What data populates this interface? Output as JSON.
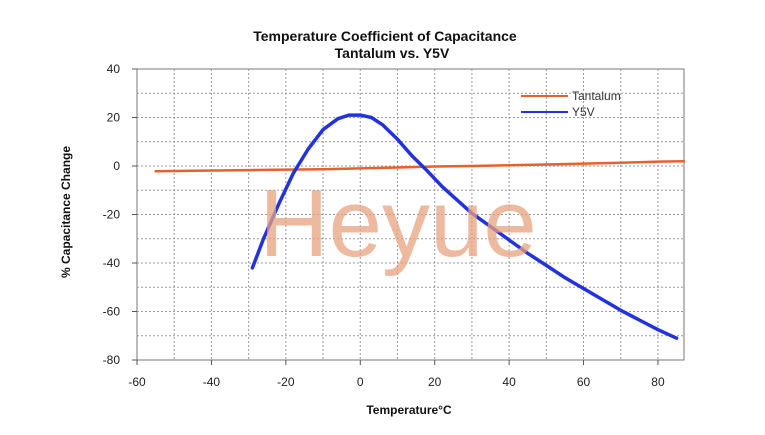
{
  "chart_data": {
    "type": "line",
    "title": "Temperature Coefficient of Capacitance",
    "subtitle": "Tantalum vs. Y5V",
    "xlabel": "Temperature°C",
    "ylabel": "% Capacitance Change",
    "xlim": [
      -60,
      87
    ],
    "ylim": [
      -80,
      40
    ],
    "xticks": [
      -60,
      -40,
      -20,
      0,
      20,
      40,
      60,
      80
    ],
    "yticks": [
      40,
      20,
      0,
      -20,
      -40,
      -60,
      -80
    ],
    "grid": true,
    "legend_position": "top-right",
    "series": [
      {
        "name": "Tantalum",
        "color": "#e8602c",
        "x": [
          -55,
          -45,
          -30,
          -20,
          -10,
          0,
          10,
          20,
          30,
          40,
          50,
          60,
          70,
          80,
          87
        ],
        "y": [
          -2.2,
          -2.0,
          -1.7,
          -1.5,
          -1.3,
          -1.0,
          -0.6,
          -0.2,
          0.0,
          0.3,
          0.6,
          1.0,
          1.3,
          1.8,
          2.0
        ]
      },
      {
        "name": "Y5V",
        "color": "#2233dd",
        "x": [
          -29,
          -26,
          -22,
          -18,
          -14,
          -10,
          -6,
          -3,
          0,
          3,
          6,
          10,
          14,
          18,
          22,
          26,
          30,
          35,
          40,
          45,
          50,
          55,
          60,
          65,
          70,
          75,
          80,
          85
        ],
        "y": [
          -42,
          -30,
          -16,
          -3,
          7,
          15,
          19.5,
          21,
          21,
          20,
          17,
          11,
          4,
          -2,
          -8.5,
          -14,
          -19.5,
          -25,
          -30.5,
          -36,
          -41,
          -46,
          -50.5,
          -55,
          -59.5,
          -63.5,
          -67.5,
          -71
        ]
      }
    ]
  },
  "watermark": "Heyue"
}
